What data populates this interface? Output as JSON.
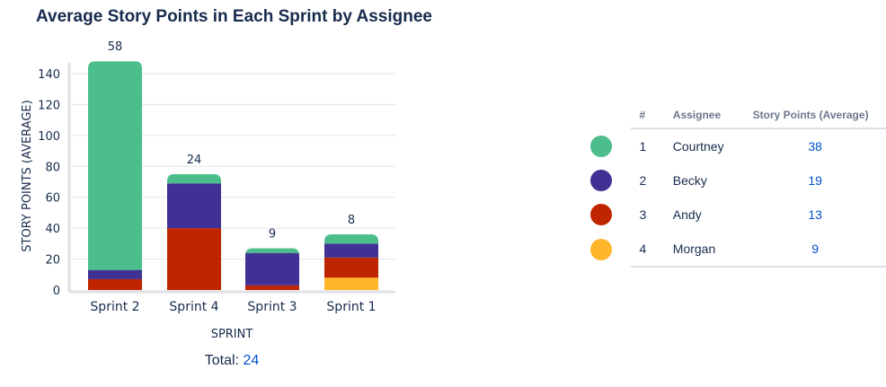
{
  "title": "Average Story Points in Each Sprint by Assignee",
  "chart_data": {
    "type": "bar",
    "stacked": true,
    "categories": [
      "Sprint 2",
      "Sprint 4",
      "Sprint 3",
      "Sprint 1"
    ],
    "bar_labels": [
      "58",
      "24",
      "9",
      "8"
    ],
    "series": [
      {
        "name": "Morgan",
        "color": "#ffb62a",
        "values": [
          0,
          0,
          0,
          8
        ]
      },
      {
        "name": "Andy",
        "color": "#bf2600",
        "values": [
          7,
          40,
          3,
          13
        ]
      },
      {
        "name": "Becky",
        "color": "#403294",
        "values": [
          6,
          29,
          21,
          9
        ]
      },
      {
        "name": "Courtney",
        "color": "#4bbe8c",
        "values": [
          135,
          6,
          3,
          6
        ]
      }
    ],
    "xlabel": "SPRINT",
    "ylabel": "STORY POINTS (AVERAGE)",
    "ylim": [
      0,
      148
    ],
    "yticks": [
      0,
      20,
      40,
      60,
      80,
      100,
      120,
      140
    ],
    "grid": true
  },
  "total": {
    "label": "Total:",
    "value": "24"
  },
  "legend_table": {
    "headers": [
      "#",
      "Assignee",
      "Story Points (Average)"
    ],
    "rows": [
      {
        "rank": "1",
        "name": "Courtney",
        "value": "38",
        "color": "#4bbe8c"
      },
      {
        "rank": "2",
        "name": "Becky",
        "value": "19",
        "color": "#403294"
      },
      {
        "rank": "3",
        "name": "Andy",
        "value": "13",
        "color": "#bf2600"
      },
      {
        "rank": "4",
        "name": "Morgan",
        "value": "9",
        "color": "#ffb62a"
      }
    ]
  }
}
